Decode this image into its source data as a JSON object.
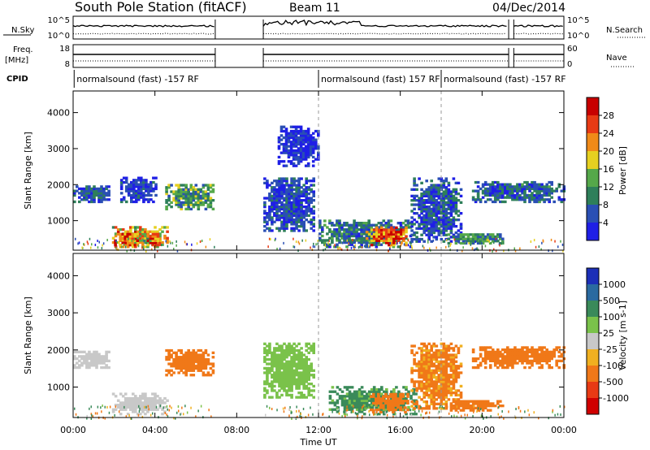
{
  "header": {
    "station": "South Pole Station (fitACF)",
    "beam": "Beam 11",
    "date": "04/Dec/2014"
  },
  "noise_panel": {
    "left_label": "N.Sky",
    "left_ticks": [
      "10^5",
      "10^0"
    ],
    "right_ticks": [
      "10^5",
      "10^0"
    ],
    "right_label": "N.Search"
  },
  "freq_panel": {
    "left_label_1": "Freq.",
    "left_label_2": "[MHz]",
    "left_ticks": [
      "18",
      "8"
    ],
    "right_ticks": [
      "60",
      "0"
    ],
    "right_label": "Nave"
  },
  "cpid_panel": {
    "label": "CPID",
    "segments": [
      {
        "start_hour": 0.05,
        "text": "normalsound (fast) -157 RF"
      },
      {
        "start_hour": 12.0,
        "text": "normalsound (fast) 157 RF"
      },
      {
        "start_hour": 18.0,
        "text": "normalsound (fast) -157 RF"
      }
    ]
  },
  "chart_data": [
    {
      "type": "heatmap",
      "panel": "power",
      "ylabel": "Slant Range [km]",
      "xlim_hours": [
        0,
        24
      ],
      "ylim": [
        180,
        4600
      ],
      "yticks": [
        1000,
        2000,
        3000,
        4000
      ],
      "colorbar": {
        "label": "Power [dB]",
        "ticks": [
          "4",
          "8",
          "12",
          "16",
          "20",
          "24",
          "28"
        ],
        "colors": [
          "#1f1fe6",
          "#2a4fb4",
          "#2e7f5a",
          "#55a84a",
          "#e6d020",
          "#f08a18",
          "#e83a14",
          "#c80000"
        ]
      },
      "echo_regions": [
        {
          "t0": 0.0,
          "t1": 1.8,
          "r0": 1500,
          "r1": 1950,
          "value": 8
        },
        {
          "t0": 1.9,
          "t1": 4.6,
          "r0": 250,
          "r1": 800,
          "value": 22
        },
        {
          "t0": 2.0,
          "t1": 3.2,
          "r0": 300,
          "r1": 650,
          "value": 28
        },
        {
          "t0": 3.6,
          "t1": 4.2,
          "r0": 300,
          "r1": 650,
          "value": 26
        },
        {
          "t0": 4.5,
          "t1": 6.9,
          "r0": 1300,
          "r1": 2000,
          "value": 14
        },
        {
          "t0": 2.3,
          "t1": 4.0,
          "r0": 1500,
          "r1": 2200,
          "value": 6
        },
        {
          "t0": 9.3,
          "t1": 11.8,
          "r0": 700,
          "r1": 2200,
          "value": 7
        },
        {
          "t0": 10.0,
          "t1": 12.0,
          "r0": 2500,
          "r1": 3600,
          "value": 5
        },
        {
          "t0": 12.0,
          "t1": 16.5,
          "r0": 250,
          "r1": 1000,
          "value": 10
        },
        {
          "t0": 14.3,
          "t1": 16.3,
          "r0": 300,
          "r1": 800,
          "value": 28
        },
        {
          "t0": 16.5,
          "t1": 19.0,
          "r0": 400,
          "r1": 2200,
          "value": 8
        },
        {
          "t0": 18.3,
          "t1": 21.0,
          "r0": 350,
          "r1": 650,
          "value": 12
        },
        {
          "t0": 19.5,
          "t1": 24.0,
          "r0": 1500,
          "r1": 2100,
          "value": 9
        }
      ],
      "data_gaps_hours": [
        [
          6.95,
          9.3
        ],
        [
          21.3,
          21.55
        ]
      ]
    },
    {
      "type": "heatmap",
      "panel": "velocity",
      "xlabel": "Time UT",
      "ylabel": "Slant Range [km]",
      "xticks": [
        "00:00",
        "04:00",
        "08:00",
        "12:00",
        "16:00",
        "20:00",
        "00:00"
      ],
      "xlim_hours": [
        0,
        24
      ],
      "ylim": [
        180,
        4600
      ],
      "yticks": [
        1000,
        2000,
        3000,
        4000
      ],
      "colorbar": {
        "label": "Velocity [m s-1]",
        "ticks": [
          "1000",
          "500",
          "100",
          "25",
          "-25",
          "-100",
          "-500",
          "-1000"
        ],
        "colors": [
          "#1c2fb8",
          "#2a6aa0",
          "#3a8a5a",
          "#7ac24a",
          "#c8c8c8",
          "#f0b020",
          "#f07818",
          "#e83a14",
          "#d00000"
        ]
      },
      "echo_regions": [
        {
          "t0": 0.0,
          "t1": 1.8,
          "r0": 1500,
          "r1": 1950,
          "value": 0
        },
        {
          "t0": 1.9,
          "t1": 4.6,
          "r0": 250,
          "r1": 800,
          "value": 0
        },
        {
          "t0": 4.5,
          "t1": 6.9,
          "r0": 1300,
          "r1": 2000,
          "value": -300
        },
        {
          "t0": 9.3,
          "t1": 11.8,
          "r0": 700,
          "r1": 2200,
          "value": 40
        },
        {
          "t0": 12.5,
          "t1": 16.8,
          "r0": 250,
          "r1": 1000,
          "value": 120
        },
        {
          "t0": 14.5,
          "t1": 16.3,
          "r0": 300,
          "r1": 800,
          "value": -300
        },
        {
          "t0": 16.5,
          "t1": 19.0,
          "r0": 400,
          "r1": 2200,
          "value": -120
        },
        {
          "t0": 18.3,
          "t1": 21.0,
          "r0": 350,
          "r1": 650,
          "value": -300
        },
        {
          "t0": 19.5,
          "t1": 24.0,
          "r0": 1500,
          "r1": 2100,
          "value": -200
        }
      ],
      "data_gaps_hours": [
        [
          6.95,
          9.3
        ],
        [
          21.3,
          21.55
        ]
      ]
    }
  ]
}
